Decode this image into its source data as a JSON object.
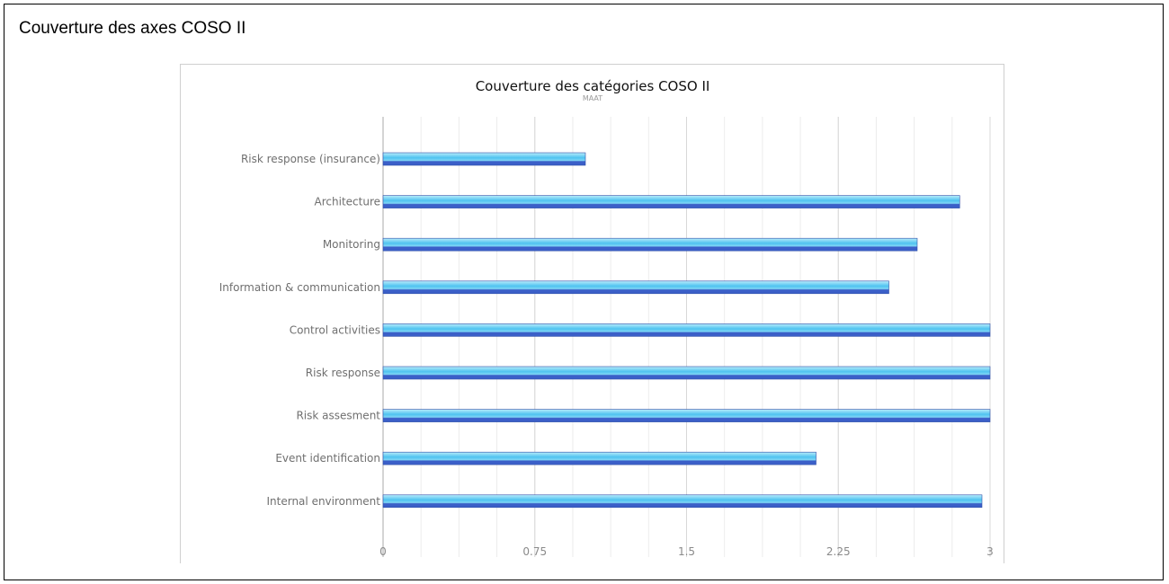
{
  "page": {
    "heading": "Couverture des axes COSO II"
  },
  "colors": {
    "bar_light": "#b8ecfb",
    "bar_mid": "#4fc3f0",
    "bar_dark": "#3b5fc8",
    "grid": "#d8d8d8",
    "axis": "#aaaaaa"
  },
  "chart_data": {
    "type": "bar",
    "orientation": "horizontal",
    "title": "Couverture des catégories COSO II",
    "subtitle": "MAAT",
    "categories": [
      "Risk response (insurance)",
      "Architecture",
      "Monitoring",
      "Information & communication",
      "Control activities",
      "Risk response",
      "Risk assesment",
      "Event identification",
      "Internal environment"
    ],
    "values": [
      1.0,
      2.85,
      2.64,
      2.5,
      3.0,
      3.0,
      3.0,
      2.14,
      2.96
    ],
    "xlim": [
      0,
      3
    ],
    "xticks": [
      "0",
      "0.75",
      "1.5",
      "2.25",
      "3"
    ],
    "grid": true,
    "legend": "none"
  }
}
